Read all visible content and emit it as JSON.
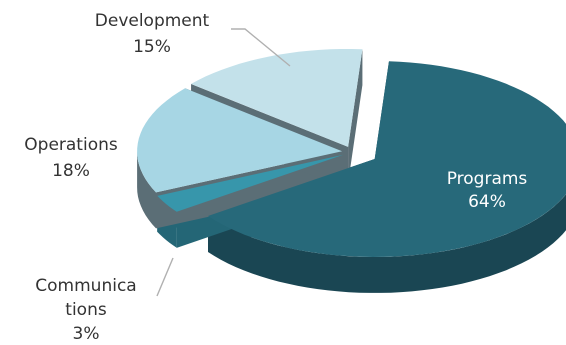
{
  "chart_data": {
    "type": "pie",
    "style": "3d-exploded",
    "slices": [
      {
        "label": "Programs",
        "label_lines": [
          "Programs"
        ],
        "value": 64,
        "value_text": "64%",
        "color": "#27697a",
        "side_color": "#1a4653"
      },
      {
        "label": "Communications",
        "label_lines": [
          "Communica",
          "tions"
        ],
        "value": 3,
        "value_text": "3%",
        "color": "#3796ab",
        "side_color": "#246676"
      },
      {
        "label": "Operations",
        "label_lines": [
          "Operations"
        ],
        "value": 18,
        "value_text": "18%",
        "color": "#a7d6e4",
        "side_color": "#5b6e76"
      },
      {
        "label": "Development",
        "label_lines": [
          "Development"
        ],
        "value": 15,
        "value_text": "15%",
        "color": "#c3e1ea",
        "side_color": "#5b6e76"
      }
    ]
  }
}
